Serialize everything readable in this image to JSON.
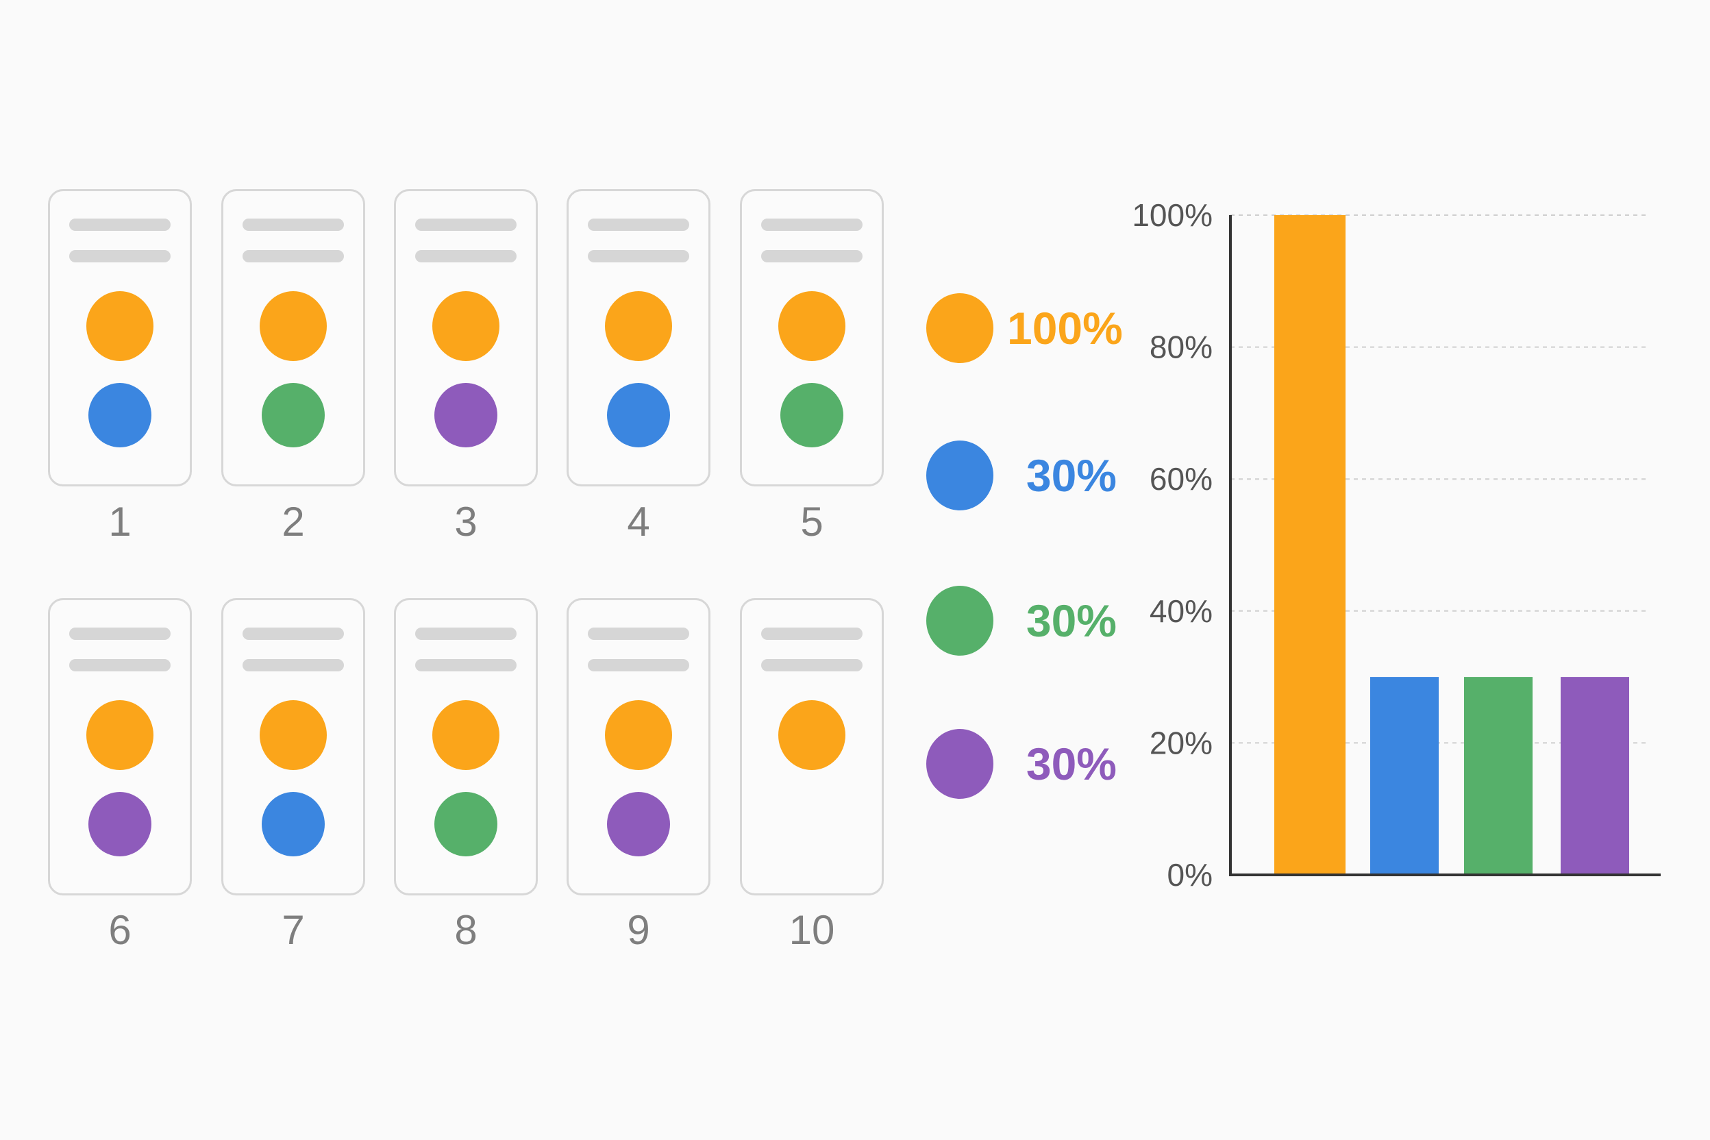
{
  "colors": {
    "orange": "#fba51a",
    "blue": "#3b86e0",
    "green": "#56b06a",
    "purple": "#8e5bbb"
  },
  "cards": [
    {
      "label": "1",
      "dots": [
        "orange",
        "blue"
      ]
    },
    {
      "label": "2",
      "dots": [
        "orange",
        "green"
      ]
    },
    {
      "label": "3",
      "dots": [
        "orange",
        "purple"
      ]
    },
    {
      "label": "4",
      "dots": [
        "orange",
        "blue"
      ]
    },
    {
      "label": "5",
      "dots": [
        "orange",
        "green"
      ]
    },
    {
      "label": "6",
      "dots": [
        "orange",
        "purple"
      ]
    },
    {
      "label": "7",
      "dots": [
        "orange",
        "blue"
      ]
    },
    {
      "label": "8",
      "dots": [
        "orange",
        "green"
      ]
    },
    {
      "label": "9",
      "dots": [
        "orange",
        "purple"
      ]
    },
    {
      "label": "10",
      "dots": [
        "orange"
      ]
    }
  ],
  "legend": [
    {
      "color": "orange",
      "label": "100%"
    },
    {
      "color": "blue",
      "label": "30%"
    },
    {
      "color": "green",
      "label": "30%"
    },
    {
      "color": "purple",
      "label": "30%"
    }
  ],
  "chart_data": {
    "type": "bar",
    "series": [
      {
        "values": [
          100,
          30,
          30,
          30
        ]
      }
    ],
    "bar_colors": [
      "orange",
      "blue",
      "green",
      "purple"
    ],
    "ylim": [
      0,
      100
    ],
    "yticks": [
      0,
      20,
      40,
      60,
      80,
      100
    ],
    "ytick_labels": [
      "0%",
      "20%",
      "40%",
      "60%",
      "80%",
      "100%"
    ],
    "grid": "horizontal dashed"
  }
}
